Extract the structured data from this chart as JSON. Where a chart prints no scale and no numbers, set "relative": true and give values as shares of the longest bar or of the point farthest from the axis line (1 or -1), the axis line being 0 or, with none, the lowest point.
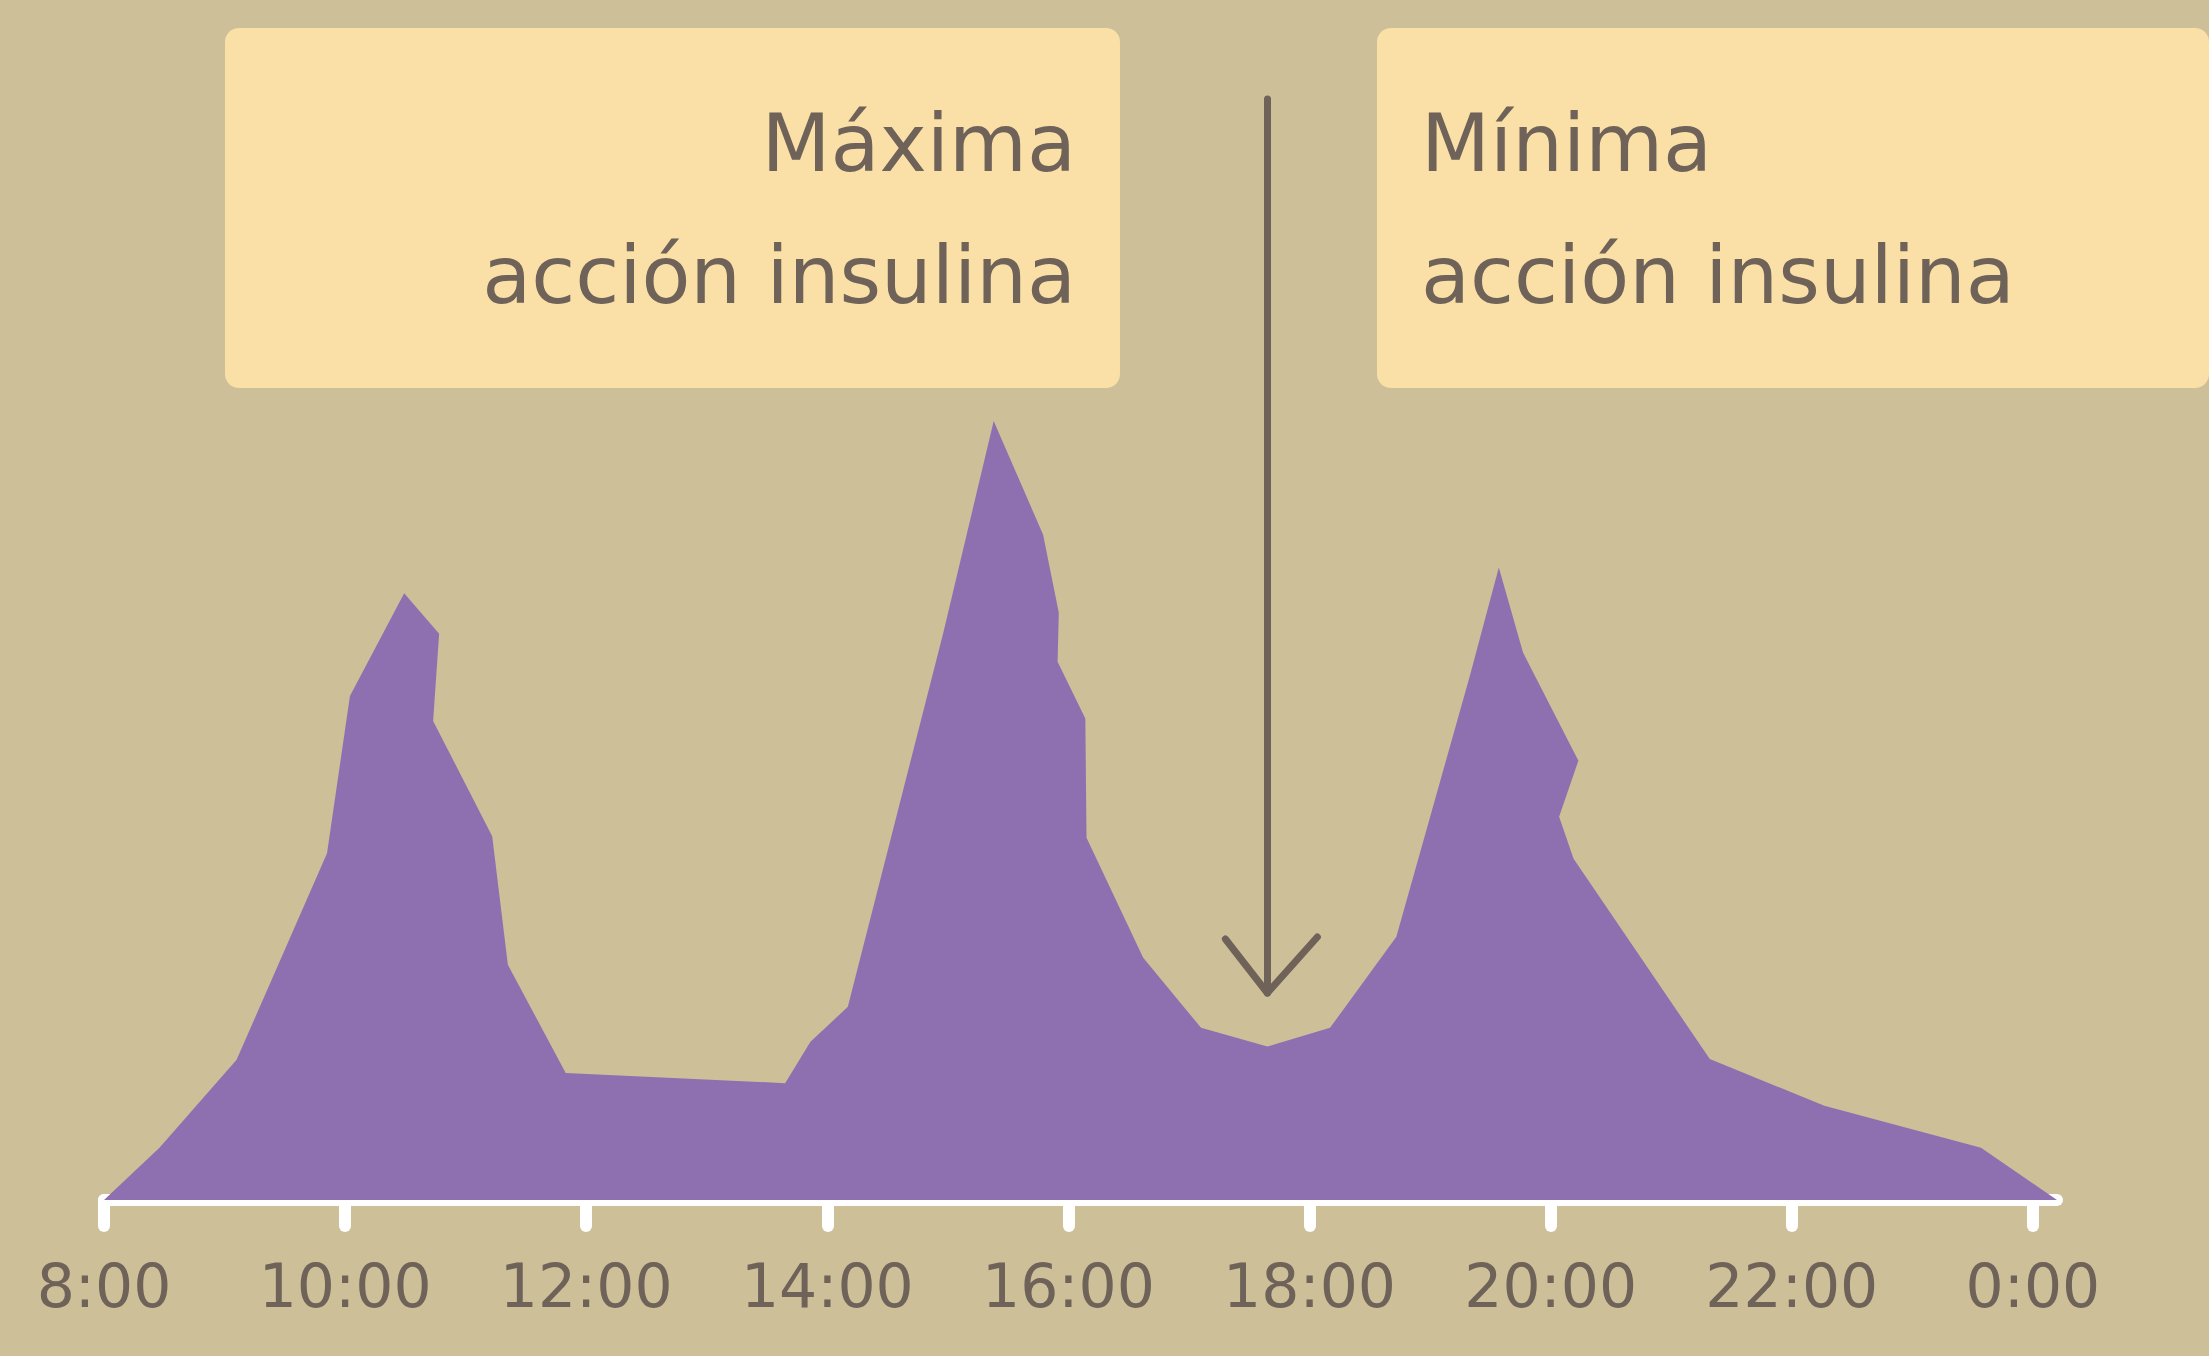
{
  "chart_data": {
    "type": "area",
    "relative": true,
    "x": [
      8.0,
      8.46,
      9.1,
      9.85,
      10.04,
      10.49,
      10.78,
      10.73,
      11.22,
      11.35,
      11.83,
      13.65,
      13.86,
      14.17,
      14.96,
      15.38,
      15.79,
      15.92,
      15.91,
      16.14,
      16.15,
      16.62,
      17.1,
      17.65,
      18.17,
      18.72,
      19.33,
      19.57,
      19.77,
      20.23,
      20.07,
      20.19,
      21.32,
      22.27,
      23.57,
      24.2
    ],
    "series": [
      {
        "color": "#8e70b0",
        "values": [
          0,
          0.067,
          0.18,
          0.445,
          0.647,
          0.779,
          0.727,
          0.615,
          0.467,
          0.302,
          0.163,
          0.15,
          0.203,
          0.248,
          0.727,
          1.0,
          0.854,
          0.754,
          0.691,
          0.618,
          0.465,
          0.311,
          0.221,
          0.197,
          0.221,
          0.338,
          0.673,
          0.812,
          0.703,
          0.564,
          0.492,
          0.438,
          0.181,
          0.121,
          0.067,
          0
        ]
      }
    ],
    "xlim": [
      8,
      24.2
    ],
    "xticks": [
      {
        "value": 8,
        "label": "8:00"
      },
      {
        "value": 10,
        "label": "10:00"
      },
      {
        "value": 12,
        "label": "12:00"
      },
      {
        "value": 14,
        "label": "14:00"
      },
      {
        "value": 16,
        "label": "16:00"
      },
      {
        "value": 18,
        "label": "18:00"
      },
      {
        "value": 20,
        "label": "20:00"
      },
      {
        "value": 22,
        "label": "22:00"
      },
      {
        "value": 24,
        "label": "0:00"
      }
    ],
    "annotations": [
      "Máxima\nacción insulina",
      "Mínima\nacción insulina"
    ],
    "ref_lines": [
      {
        "axis": "x",
        "value": 17.65,
        "color": "#6e6259"
      }
    ],
    "grid": false
  }
}
